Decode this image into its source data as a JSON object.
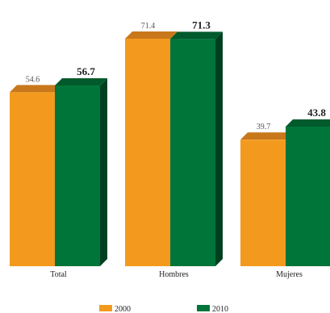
{
  "chart_data": {
    "type": "bar",
    "categories": [
      "Total",
      "Hombres",
      "Mujeres"
    ],
    "series": [
      {
        "name": "2000",
        "values": [
          54.6,
          71.4,
          39.7
        ],
        "labels": [
          "54.6",
          "71.4",
          "39.7"
        ],
        "color": "#f39a1e",
        "top_color": "#c8781a",
        "side_color": "#b06a12"
      },
      {
        "name": "2010",
        "values": [
          56.7,
          71.3,
          43.8
        ],
        "labels": [
          "56.7",
          "71.3",
          "43.8"
        ],
        "color": "#00753a",
        "top_color": "#005a2b",
        "side_color": "#004020"
      }
    ],
    "ylim": [
      0,
      80
    ],
    "legend_position": "bottom",
    "grid": false
  }
}
